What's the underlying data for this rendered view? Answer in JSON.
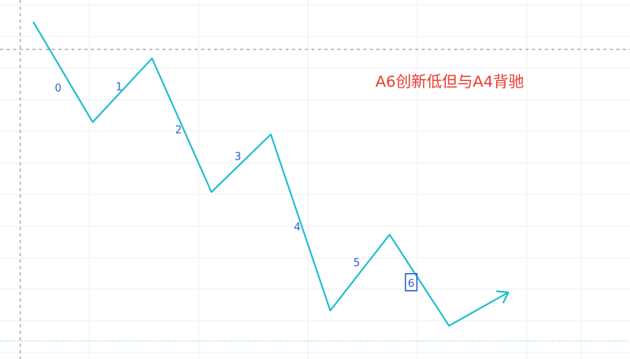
{
  "chart_data": {
    "type": "line",
    "title": "",
    "xlabel": "",
    "ylabel": "",
    "grid": true,
    "line_color": "#1bbccd",
    "label_color": "#2d5fd3",
    "annotation_color": "#e83a2a",
    "points": [
      {
        "x": 0,
        "y": 100
      },
      {
        "x": 1,
        "y": 67
      },
      {
        "x": 2,
        "y": 88
      },
      {
        "x": 3,
        "y": 44
      },
      {
        "x": 4,
        "y": 63
      },
      {
        "x": 5,
        "y": 5
      },
      {
        "x": 6,
        "y": 30
      },
      {
        "x": 7,
        "y": 0
      },
      {
        "x": 8,
        "y": 11
      }
    ],
    "segments": [
      {
        "label": "0"
      },
      {
        "label": "1"
      },
      {
        "label": "2"
      },
      {
        "label": "3"
      },
      {
        "label": "4"
      },
      {
        "label": "5"
      },
      {
        "label": "6",
        "boxed": true
      }
    ],
    "annotation": "A6创新低但与A4背驰"
  }
}
